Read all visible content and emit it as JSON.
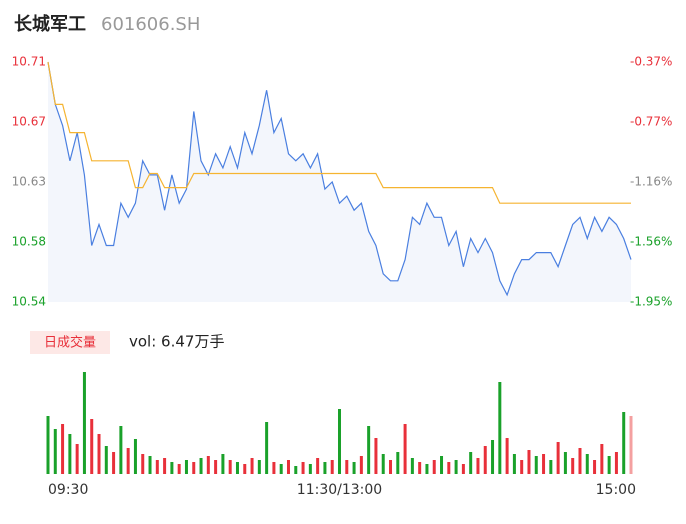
{
  "header": {
    "name": "长城军工",
    "code": "601606.SH"
  },
  "chart_data": [
    {
      "type": "line",
      "x": [
        0,
        3,
        6,
        9,
        12,
        15,
        18,
        21,
        24,
        27,
        30,
        33,
        36,
        39,
        42,
        45,
        48,
        51,
        54,
        57,
        60,
        63,
        66,
        69,
        72,
        75,
        78,
        81,
        84,
        87,
        90,
        93,
        96,
        99,
        102,
        105,
        108,
        111,
        114,
        117,
        120,
        123,
        126,
        129,
        132,
        135,
        138,
        141,
        144,
        147,
        150,
        153,
        156,
        159,
        162,
        165,
        168,
        171,
        174,
        177,
        180,
        183,
        186,
        189,
        192,
        195,
        198,
        201,
        204,
        207,
        210,
        213,
        216,
        219,
        222,
        225,
        228,
        231,
        234,
        237,
        240
      ],
      "xlim": [
        0,
        240
      ],
      "ylim": [
        10.54,
        10.71
      ],
      "yticks": [
        10.71,
        {
          "value": 10.6675,
          "label": "10.67"
        },
        {
          "value": 10.625,
          "label": "10.63"
        },
        {
          "value": 10.5825,
          "label": "10.58"
        },
        10.54
      ],
      "ytick_colors": [
        "#e8303a",
        "#e8303a",
        "#888888",
        "#1aa12a",
        "#1aa12a"
      ],
      "y2lim": [
        -1.95,
        -0.37
      ],
      "y2ticks": [
        {
          "value": -0.37,
          "label": "-0.37%"
        },
        {
          "value": -0.765,
          "label": "-0.77%"
        },
        {
          "value": -1.16,
          "label": "-1.16%"
        },
        {
          "value": -1.555,
          "label": "-1.56%"
        },
        {
          "value": -1.95,
          "label": "-1.95%"
        }
      ],
      "area_color": "#f3f6fc",
      "series": [
        {
          "color": "#4a7fe0",
          "values": [
            10.71,
            10.68,
            10.665,
            10.64,
            10.66,
            10.63,
            10.58,
            10.595,
            10.58,
            10.58,
            10.61,
            10.6,
            10.61,
            10.64,
            10.63,
            10.63,
            10.605,
            10.63,
            10.61,
            10.62,
            10.675,
            10.64,
            10.63,
            10.645,
            10.635,
            10.65,
            10.635,
            10.66,
            10.645,
            10.665,
            10.69,
            10.66,
            10.67,
            10.645,
            10.64,
            10.645,
            10.635,
            10.645,
            10.62,
            10.625,
            10.61,
            10.615,
            10.605,
            10.61,
            10.59,
            10.58,
            10.56,
            10.555,
            10.555,
            10.57,
            10.6,
            10.595,
            10.61,
            10.6,
            10.6,
            10.58,
            10.59,
            10.565,
            10.585,
            10.575,
            10.585,
            10.575,
            10.555,
            10.545,
            10.56,
            10.57,
            10.57,
            10.575,
            10.575,
            10.575,
            10.565,
            10.58,
            10.595,
            10.6,
            10.585,
            10.6,
            10.59,
            10.6,
            10.595,
            10.585,
            10.57
          ]
        },
        {
          "color": "#f5b431",
          "values": [
            10.71,
            10.68,
            10.68,
            10.66,
            10.66,
            10.66,
            10.64,
            10.64,
            10.64,
            10.64,
            10.64,
            10.64,
            10.621,
            10.621,
            10.631,
            10.631,
            10.621,
            10.621,
            10.621,
            10.621,
            10.631,
            10.631,
            10.631,
            10.631,
            10.631,
            10.631,
            10.631,
            10.631,
            10.631,
            10.631,
            10.631,
            10.631,
            10.631,
            10.631,
            10.631,
            10.631,
            10.631,
            10.631,
            10.631,
            10.631,
            10.631,
            10.631,
            10.631,
            10.631,
            10.631,
            10.631,
            10.621,
            10.621,
            10.621,
            10.621,
            10.621,
            10.621,
            10.621,
            10.621,
            10.621,
            10.621,
            10.621,
            10.621,
            10.621,
            10.621,
            10.621,
            10.621,
            10.61,
            10.61,
            10.61,
            10.61,
            10.61,
            10.61,
            10.61,
            10.61,
            10.61,
            10.61,
            10.61,
            10.61,
            10.61,
            10.61,
            10.61,
            10.61,
            10.61,
            10.61,
            10.61
          ]
        }
      ]
    },
    {
      "type": "bar",
      "legend_label": "日成交量",
      "volume_text": "vol: 6.47万手",
      "x": [
        0,
        3,
        6,
        9,
        12,
        15,
        18,
        21,
        24,
        27,
        30,
        33,
        36,
        39,
        42,
        45,
        48,
        51,
        54,
        57,
        60,
        63,
        66,
        69,
        72,
        75,
        78,
        81,
        84,
        87,
        90,
        93,
        96,
        99,
        102,
        105,
        108,
        111,
        114,
        117,
        120,
        123,
        126,
        129,
        132,
        135,
        138,
        141,
        144,
        147,
        150,
        153,
        156,
        159,
        162,
        165,
        168,
        171,
        174,
        177,
        180,
        183,
        186,
        189,
        192,
        195,
        198,
        201,
        204,
        207,
        210,
        213,
        216,
        219,
        222,
        225,
        228,
        231,
        234,
        237,
        240
      ],
      "xlim": [
        0,
        240
      ],
      "xticks": [
        {
          "value": 0,
          "label": "09:30"
        },
        {
          "value": 120,
          "label": "11:30/13:00"
        },
        {
          "value": 240,
          "label": "15:00"
        }
      ],
      "values": [
        58,
        45,
        50,
        40,
        30,
        102,
        55,
        40,
        28,
        22,
        48,
        26,
        35,
        20,
        18,
        14,
        16,
        12,
        10,
        14,
        12,
        16,
        18,
        14,
        20,
        14,
        12,
        10,
        16,
        14,
        52,
        12,
        10,
        14,
        8,
        12,
        10,
        16,
        12,
        14,
        65,
        14,
        12,
        18,
        48,
        36,
        20,
        14,
        22,
        50,
        16,
        12,
        10,
        14,
        18,
        12,
        14,
        10,
        22,
        16,
        28,
        34,
        92,
        36,
        20,
        14,
        24,
        18,
        20,
        14,
        32,
        22,
        16,
        26,
        20,
        14,
        30,
        18,
        22,
        62,
        58
      ],
      "colors": [
        "#1aa12a",
        "#1aa12a",
        "#e8303a",
        "#1aa12a",
        "#e8303a",
        "#1aa12a",
        "#e8303a",
        "#e8303a",
        "#1aa12a",
        "#e8303a",
        "#1aa12a",
        "#e8303a",
        "#1aa12a",
        "#e8303a",
        "#1aa12a",
        "#e8303a",
        "#e8303a",
        "#1aa12a",
        "#e8303a",
        "#1aa12a",
        "#e8303a",
        "#1aa12a",
        "#e8303a",
        "#e8303a",
        "#1aa12a",
        "#e8303a",
        "#1aa12a",
        "#e8303a",
        "#e8303a",
        "#1aa12a",
        "#1aa12a",
        "#e8303a",
        "#1aa12a",
        "#e8303a",
        "#1aa12a",
        "#e8303a",
        "#1aa12a",
        "#e8303a",
        "#1aa12a",
        "#e8303a",
        "#1aa12a",
        "#e8303a",
        "#1aa12a",
        "#e8303a",
        "#1aa12a",
        "#e8303a",
        "#1aa12a",
        "#e8303a",
        "#1aa12a",
        "#e8303a",
        "#1aa12a",
        "#e8303a",
        "#1aa12a",
        "#e8303a",
        "#1aa12a",
        "#e8303a",
        "#1aa12a",
        "#e8303a",
        "#1aa12a",
        "#e8303a",
        "#e8303a",
        "#1aa12a",
        "#1aa12a",
        "#e8303a",
        "#1aa12a",
        "#e8303a",
        "#e8303a",
        "#1aa12a",
        "#e8303a",
        "#1aa12a",
        "#e8303a",
        "#1aa12a",
        "#e8303a",
        "#e8303a",
        "#1aa12a",
        "#e8303a",
        "#e8303a",
        "#1aa12a",
        "#e8303a",
        "#1aa12a",
        "#f4a0a0"
      ]
    }
  ]
}
